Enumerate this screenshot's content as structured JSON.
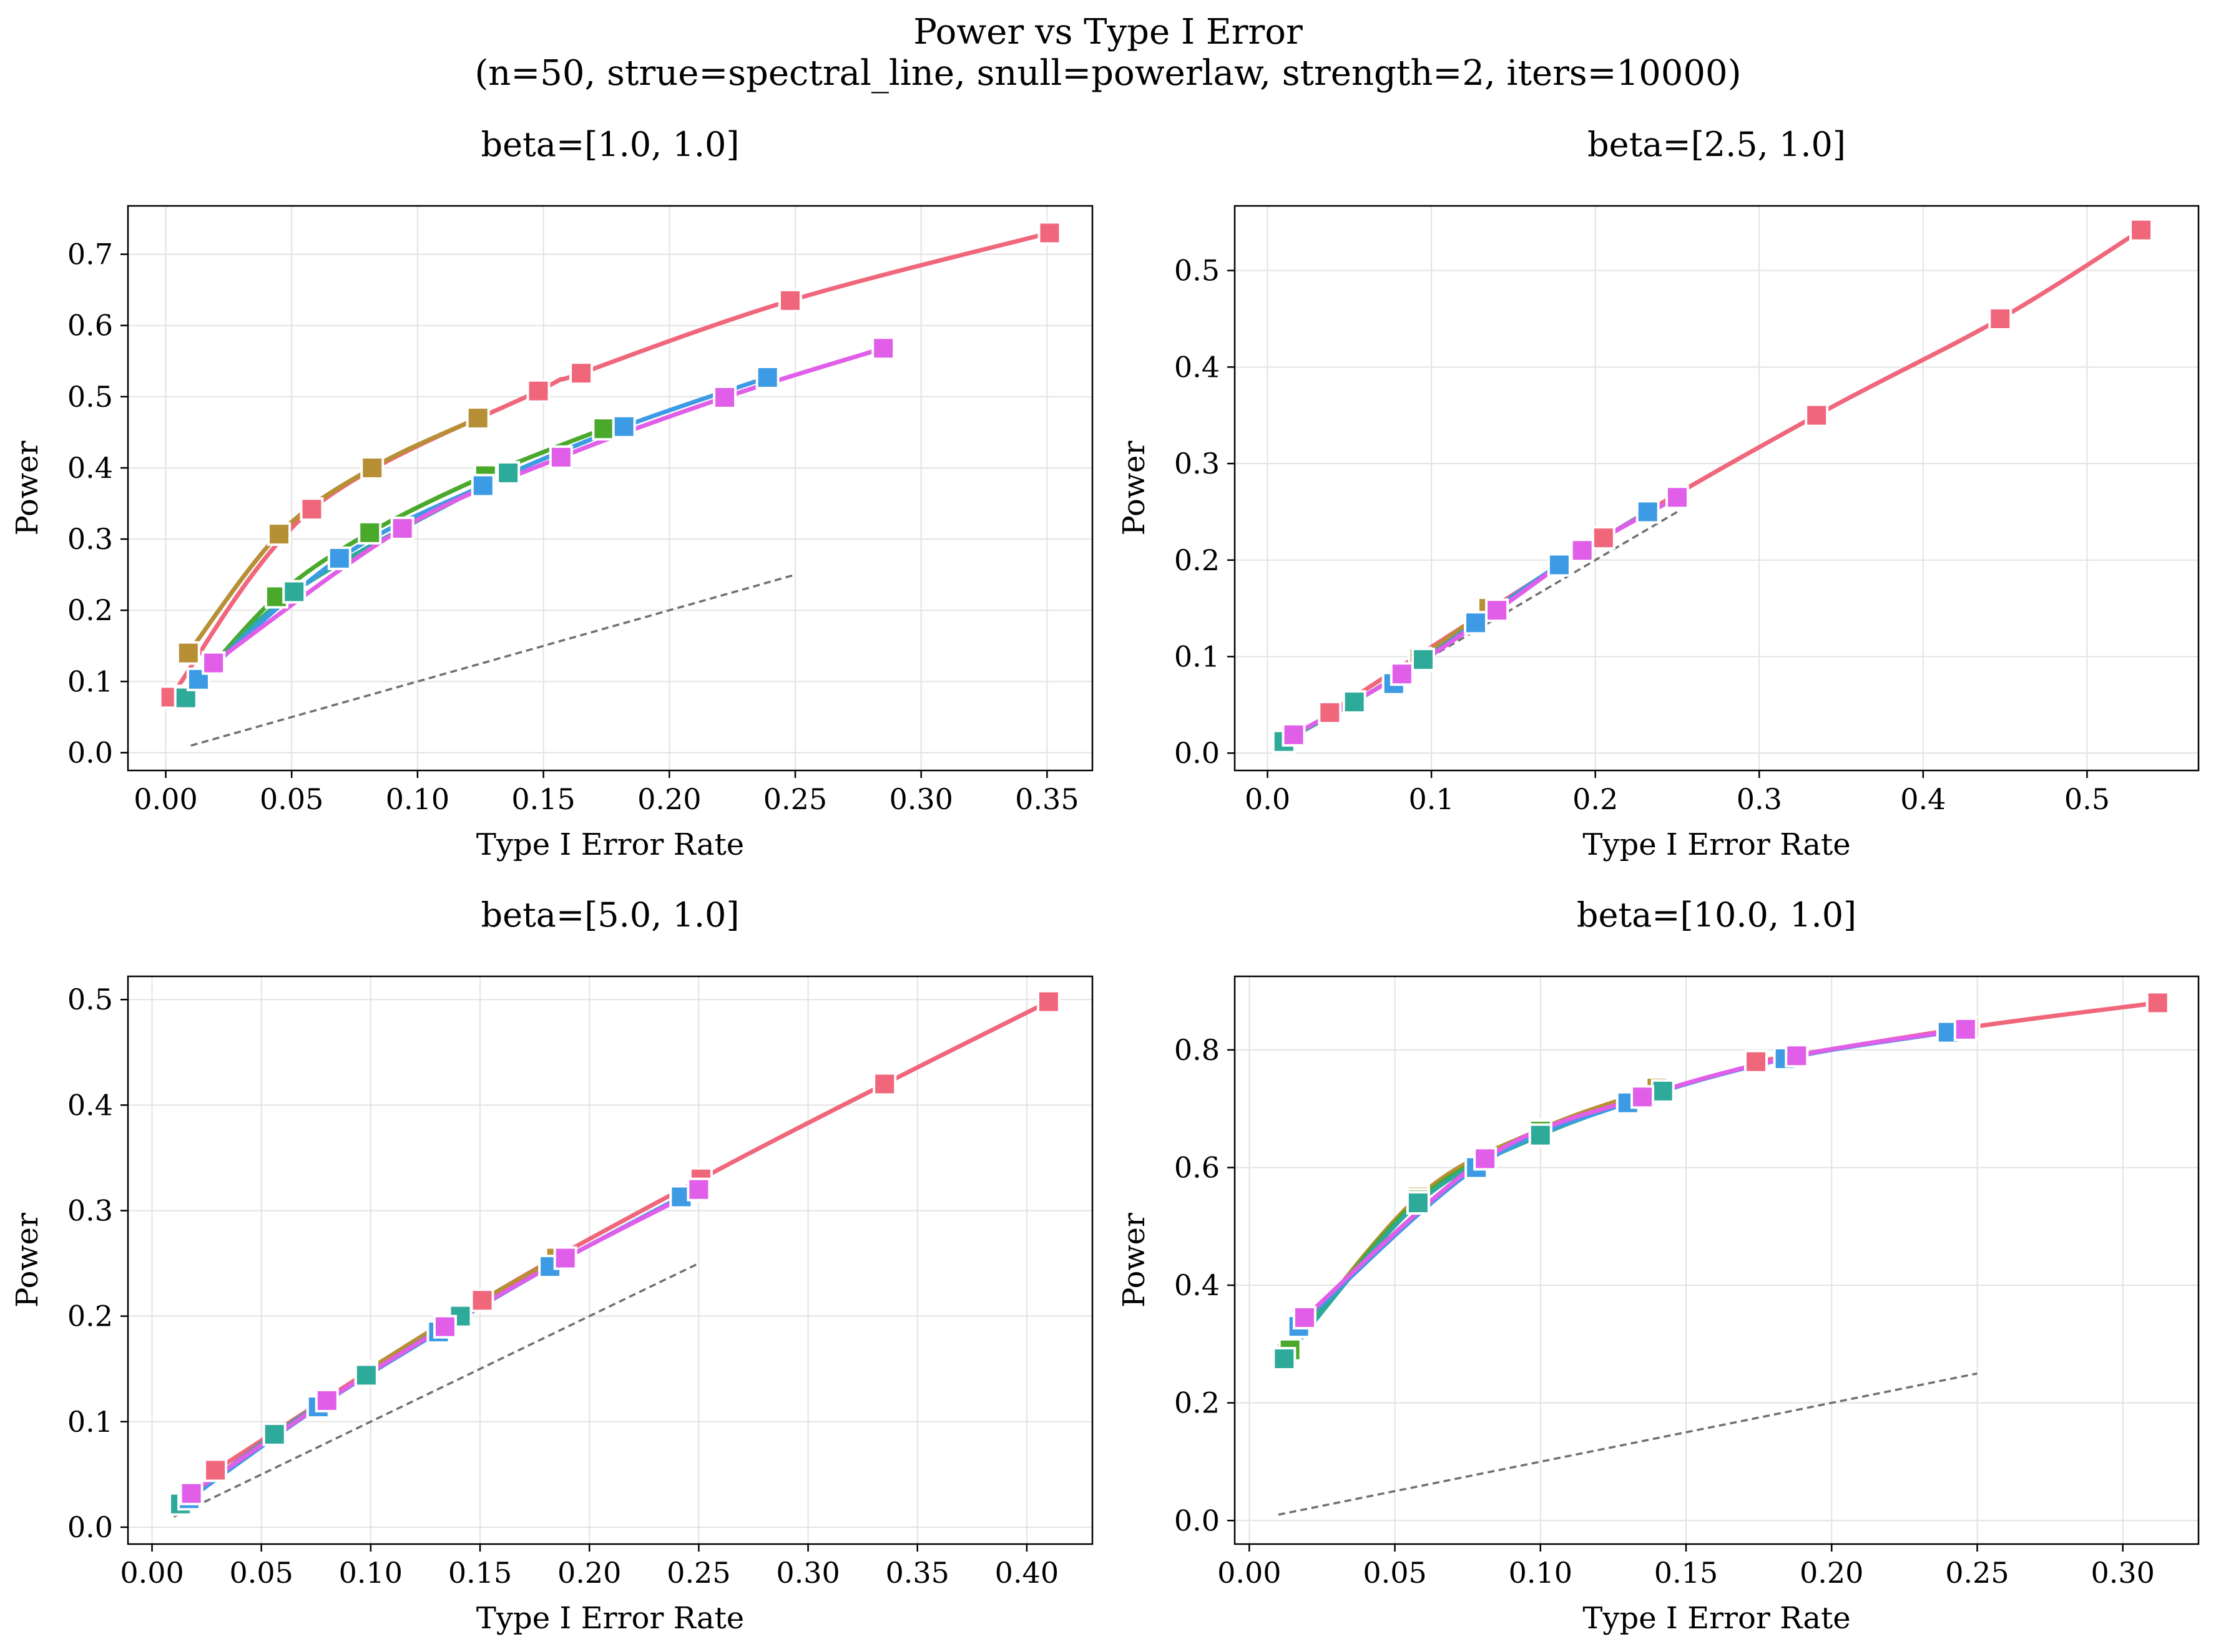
{
  "figure": {
    "title_line1": "Power vs Type I Error",
    "title_line2": "(n=50, strue=spectral_line, snull=powerlaw, strength=2, iters=10000)"
  },
  "chart_data": [
    {
      "type": "line",
      "title": "beta=[1.0, 1.0]",
      "xlabel": "Type I Error Rate",
      "ylabel": "Power",
      "xlim": [
        -0.015,
        0.368
      ],
      "ylim": [
        -0.025,
        0.768
      ],
      "xticks": [
        0.0,
        0.05,
        0.1,
        0.15,
        0.2,
        0.25,
        0.3,
        0.35
      ],
      "xtick_labels": [
        "0.00",
        "0.05",
        "0.10",
        "0.15",
        "0.20",
        "0.25",
        "0.30",
        "0.35"
      ],
      "yticks": [
        0.0,
        0.1,
        0.2,
        0.3,
        0.4,
        0.5,
        0.6,
        0.7
      ],
      "ytick_labels": [
        "0.0",
        "0.1",
        "0.2",
        "0.3",
        "0.4",
        "0.5",
        "0.6",
        "0.7"
      ],
      "grid": true,
      "reference": {
        "x": [
          0.01,
          0.25
        ],
        "y": [
          0.01,
          0.25
        ],
        "style": "dashed",
        "color": "#707070"
      },
      "series": [
        {
          "color": "#f0677c",
          "x": [
            0.002,
            0.058,
            0.148,
            0.165,
            0.248,
            0.351
          ],
          "y": [
            0.078,
            0.342,
            0.508,
            0.533,
            0.635,
            0.73
          ]
        },
        {
          "color": "#b78f34",
          "x": [
            0.009,
            0.045,
            0.082,
            0.124
          ],
          "y": [
            0.14,
            0.307,
            0.4,
            0.47
          ]
        },
        {
          "color": "#4aa82b",
          "x": [
            0.008,
            0.044,
            0.081,
            0.127,
            0.174
          ],
          "y": [
            0.079,
            0.219,
            0.309,
            0.389,
            0.455
          ]
        },
        {
          "color": "#2eaa9b",
          "x": [
            0.008,
            0.051,
            0.136
          ],
          "y": [
            0.077,
            0.226,
            0.393
          ]
        },
        {
          "color": "#3c9be4",
          "x": [
            0.013,
            0.069,
            0.126,
            0.182,
            0.239
          ],
          "y": [
            0.103,
            0.273,
            0.375,
            0.458,
            0.527
          ]
        },
        {
          "color": "#e05ee8",
          "x": [
            0.019,
            0.094,
            0.157,
            0.222,
            0.285
          ],
          "y": [
            0.126,
            0.315,
            0.415,
            0.499,
            0.568
          ]
        }
      ]
    },
    {
      "type": "line",
      "title": "beta=[2.5, 1.0]",
      "xlabel": "Type I Error Rate",
      "ylabel": "Power",
      "xlim": [
        -0.02,
        0.568
      ],
      "ylim": [
        -0.018,
        0.567
      ],
      "xticks": [
        0.0,
        0.1,
        0.2,
        0.3,
        0.4,
        0.5
      ],
      "xtick_labels": [
        "0.0",
        "0.1",
        "0.2",
        "0.3",
        "0.4",
        "0.5"
      ],
      "yticks": [
        0.0,
        0.1,
        0.2,
        0.3,
        0.4,
        0.5
      ],
      "ytick_labels": [
        "0.0",
        "0.1",
        "0.2",
        "0.3",
        "0.4",
        "0.5"
      ],
      "grid": true,
      "reference": {
        "x": [
          0.01,
          0.25
        ],
        "y": [
          0.01,
          0.25
        ],
        "style": "dashed",
        "color": "#707070"
      },
      "series": [
        {
          "color": "#f0677c",
          "x": [
            0.038,
            0.205,
            0.335,
            0.447,
            0.533
          ],
          "y": [
            0.042,
            0.223,
            0.35,
            0.45,
            0.542
          ]
        },
        {
          "color": "#b78f34",
          "x": [
            0.093,
            0.135
          ],
          "y": [
            0.098,
            0.15
          ]
        },
        {
          "color": "#4aa82b",
          "x": [
            0.095
          ],
          "y": [
            0.097
          ]
        },
        {
          "color": "#2eaa9b",
          "x": [
            0.01,
            0.053,
            0.095,
            0.127,
            0.178
          ],
          "y": [
            0.012,
            0.053,
            0.097,
            0.135,
            0.195
          ]
        },
        {
          "color": "#3c9be4",
          "x": [
            0.077,
            0.127,
            0.178,
            0.232
          ],
          "y": [
            0.072,
            0.135,
            0.195,
            0.25
          ]
        },
        {
          "color": "#e05ee8",
          "x": [
            0.016,
            0.082,
            0.14,
            0.192,
            0.25
          ],
          "y": [
            0.019,
            0.082,
            0.148,
            0.21,
            0.265
          ]
        }
      ]
    },
    {
      "type": "line",
      "title": "beta=[5.0, 1.0]",
      "xlabel": "Type I Error Rate",
      "ylabel": "Power",
      "xlim": [
        -0.011,
        0.43
      ],
      "ylim": [
        -0.016,
        0.522
      ],
      "xticks": [
        0.0,
        0.05,
        0.1,
        0.15,
        0.2,
        0.25,
        0.3,
        0.35,
        0.4
      ],
      "xtick_labels": [
        "0.00",
        "0.05",
        "0.10",
        "0.15",
        "0.20",
        "0.25",
        "0.30",
        "0.35",
        "0.40"
      ],
      "yticks": [
        0.0,
        0.1,
        0.2,
        0.3,
        0.4,
        0.5
      ],
      "ytick_labels": [
        "0.0",
        "0.1",
        "0.2",
        "0.3",
        "0.4",
        "0.5"
      ],
      "grid": true,
      "reference": {
        "x": [
          0.01,
          0.25
        ],
        "y": [
          0.01,
          0.25
        ],
        "style": "dashed",
        "color": "#707070"
      },
      "series": [
        {
          "color": "#f0677c",
          "x": [
            0.029,
            0.151,
            0.251,
            0.335,
            0.41
          ],
          "y": [
            0.054,
            0.215,
            0.33,
            0.42,
            0.498
          ]
        },
        {
          "color": "#b78f34",
          "x": [
            0.098,
            0.14,
            0.185
          ],
          "y": [
            0.148,
            0.202,
            0.255
          ]
        },
        {
          "color": "#4aa82b",
          "x": [
            0.098
          ],
          "y": [
            0.146
          ]
        },
        {
          "color": "#2eaa9b",
          "x": [
            0.013,
            0.056,
            0.098,
            0.141
          ],
          "y": [
            0.022,
            0.088,
            0.144,
            0.2
          ]
        },
        {
          "color": "#3c9be4",
          "x": [
            0.017,
            0.076,
            0.131,
            0.182,
            0.242
          ],
          "y": [
            0.027,
            0.114,
            0.185,
            0.247,
            0.313
          ]
        },
        {
          "color": "#e05ee8",
          "x": [
            0.018,
            0.08,
            0.134,
            0.189,
            0.25
          ],
          "y": [
            0.032,
            0.12,
            0.19,
            0.255,
            0.32
          ]
        }
      ]
    },
    {
      "type": "line",
      "title": "beta=[10.0, 1.0]",
      "xlabel": "Type I Error Rate",
      "ylabel": "Power",
      "xlim": [
        -0.005,
        0.326
      ],
      "ylim": [
        -0.04,
        0.925
      ],
      "xticks": [
        0.0,
        0.05,
        0.1,
        0.15,
        0.2,
        0.25,
        0.3
      ],
      "xtick_labels": [
        "0.00",
        "0.05",
        "0.10",
        "0.15",
        "0.20",
        "0.25",
        "0.30"
      ],
      "yticks": [
        0.0,
        0.2,
        0.4,
        0.6,
        0.8
      ],
      "ytick_labels": [
        "0.0",
        "0.2",
        "0.4",
        "0.6",
        "0.8"
      ],
      "grid": true,
      "reference": {
        "x": [
          0.01,
          0.25
        ],
        "y": [
          0.01,
          0.25
        ],
        "style": "dashed",
        "color": "#707070"
      },
      "series": [
        {
          "color": "#f0677c",
          "x": [
            0.174,
            0.247,
            0.312
          ],
          "y": [
            0.78,
            0.838,
            0.88
          ]
        },
        {
          "color": "#b78f34",
          "x": [
            0.013,
            0.058,
            0.1,
            0.14
          ],
          "y": [
            0.285,
            0.55,
            0.665,
            0.735
          ]
        },
        {
          "color": "#4aa82b",
          "x": [
            0.014,
            0.058,
            0.1
          ],
          "y": [
            0.29,
            0.545,
            0.662
          ]
        },
        {
          "color": "#2eaa9b",
          "x": [
            0.012,
            0.058,
            0.1,
            0.142
          ],
          "y": [
            0.275,
            0.54,
            0.655,
            0.73
          ]
        },
        {
          "color": "#3c9be4",
          "x": [
            0.017,
            0.078,
            0.13,
            0.184,
            0.24
          ],
          "y": [
            0.33,
            0.6,
            0.71,
            0.785,
            0.83
          ]
        },
        {
          "color": "#e05ee8",
          "x": [
            0.019,
            0.081,
            0.135,
            0.188,
            0.246
          ],
          "y": [
            0.345,
            0.615,
            0.72,
            0.79,
            0.835
          ]
        }
      ]
    }
  ]
}
